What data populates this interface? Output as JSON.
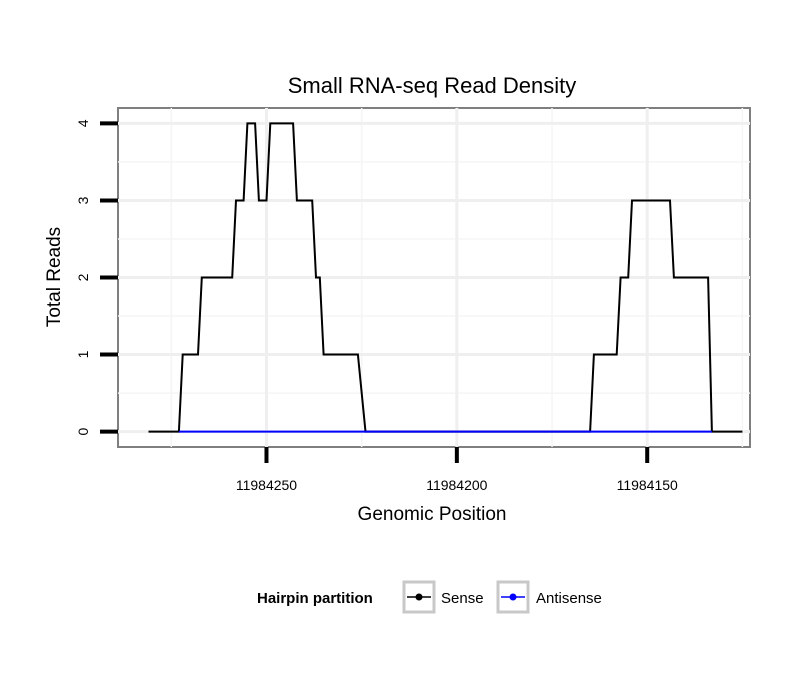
{
  "chart_data": {
    "type": "line",
    "title": "Small RNA-seq Read Density",
    "xlabel": "Genomic Position",
    "ylabel": "Total Reads",
    "x_reversed": true,
    "xlim": [
      11984289,
      11984123
    ],
    "ylim": [
      -0.2,
      4.2
    ],
    "x_ticks": [
      11984250,
      11984200,
      11984150
    ],
    "x_tick_labels": [
      "11984250",
      "11984200",
      "11984150"
    ],
    "y_ticks": [
      0,
      1,
      2,
      3,
      4
    ],
    "y_tick_labels": [
      "0",
      "1",
      "2",
      "3",
      "4"
    ],
    "grid": true,
    "legend": {
      "title": "Hairpin partition",
      "position": "bottom",
      "entries": [
        {
          "name": "Sense",
          "color": "#000000"
        },
        {
          "name": "Antisense",
          "color": "#0000ff"
        }
      ]
    },
    "series": [
      {
        "name": "Sense",
        "color": "#000000",
        "points": [
          [
            11984281,
            0
          ],
          [
            11984273,
            0
          ],
          [
            11984272,
            1
          ],
          [
            11984268,
            1
          ],
          [
            11984267,
            2
          ],
          [
            11984259,
            2
          ],
          [
            11984258,
            3
          ],
          [
            11984256,
            3
          ],
          [
            11984255,
            4
          ],
          [
            11984253,
            4
          ],
          [
            11984252,
            3
          ],
          [
            11984250,
            3
          ],
          [
            11984249,
            4
          ],
          [
            11984243,
            4
          ],
          [
            11984242,
            3
          ],
          [
            11984238,
            3
          ],
          [
            11984237,
            2
          ],
          [
            11984236,
            2
          ],
          [
            11984235,
            1
          ],
          [
            11984226,
            1
          ],
          [
            11984224,
            0
          ],
          [
            11984165,
            0
          ],
          [
            11984164,
            1
          ],
          [
            11984158,
            1
          ],
          [
            11984157,
            2
          ],
          [
            11984155,
            2
          ],
          [
            11984154,
            3
          ],
          [
            11984144,
            3
          ],
          [
            11984143,
            2
          ],
          [
            11984134,
            2
          ],
          [
            11984133,
            0
          ],
          [
            11984125,
            0
          ]
        ]
      },
      {
        "name": "Antisense",
        "color": "#0000ff",
        "points": [
          [
            11984273,
            0
          ],
          [
            11984224,
            0
          ],
          [
            11984165,
            0
          ],
          [
            11984133,
            0
          ]
        ]
      }
    ]
  }
}
